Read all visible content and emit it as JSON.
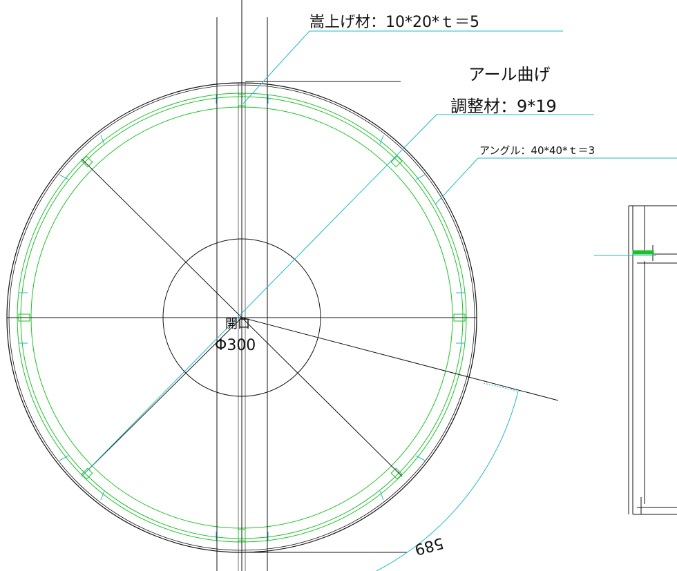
{
  "labels": {
    "raising_material": "嵩上げ材：10*20*ｔ＝5",
    "arc_bend": "アール曲げ",
    "adjust_material": "調整材：9*19",
    "angle": "アングル：40*40*ｔ＝3",
    "opening": "開口",
    "diameter": "Φ300",
    "dimension": "589"
  },
  "colors": {
    "line": "#111111",
    "leader": "#22b8c8",
    "ring": "#1fbf2a"
  }
}
